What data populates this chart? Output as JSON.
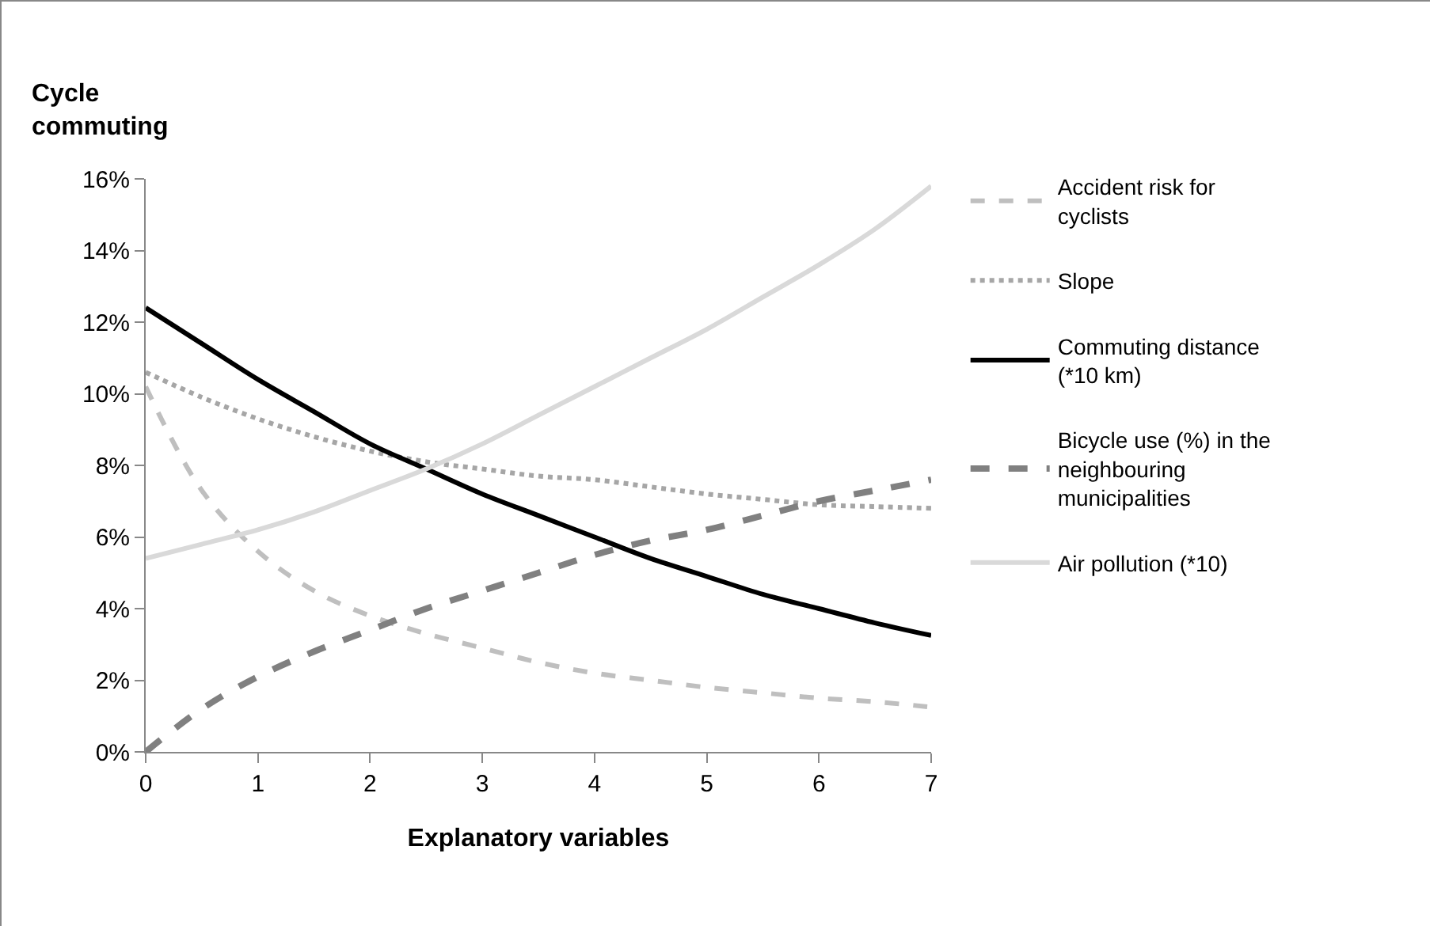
{
  "chart_data": {
    "type": "line",
    "ylabel": "Cycle commuting",
    "xlabel": "Explanatory variables",
    "x": [
      0,
      0.5,
      1,
      1.5,
      2,
      2.5,
      3,
      3.5,
      4,
      4.5,
      5,
      5.5,
      6,
      6.5,
      7
    ],
    "series": [
      {
        "name": "Accident risk for cyclists",
        "color": "#bfbfbf",
        "line_style": "dashed",
        "values": [
          10.2,
          7.3,
          5.6,
          4.5,
          3.8,
          3.3,
          2.9,
          2.5,
          2.2,
          2.0,
          1.8,
          1.65,
          1.5,
          1.4,
          1.25
        ]
      },
      {
        "name": "Slope",
        "color": "#a6a6a6",
        "line_style": "dotted",
        "values": [
          10.6,
          9.9,
          9.3,
          8.8,
          8.4,
          8.1,
          7.9,
          7.7,
          7.6,
          7.4,
          7.2,
          7.05,
          6.9,
          6.85,
          6.8
        ]
      },
      {
        "name": "Commuting distance (*10 km)",
        "color": "#000000",
        "line_style": "solid",
        "values": [
          12.4,
          11.4,
          10.4,
          9.5,
          8.6,
          7.9,
          7.2,
          6.6,
          6.0,
          5.4,
          4.9,
          4.4,
          4.0,
          3.6,
          3.25
        ]
      },
      {
        "name": "Bicycle use (%) in the neighbouring municipalities",
        "color": "#808080",
        "line_style": "dashed",
        "values": [
          0,
          1.2,
          2.1,
          2.8,
          3.4,
          4.0,
          4.5,
          5.0,
          5.5,
          5.9,
          6.2,
          6.6,
          7.0,
          7.3,
          7.6
        ]
      },
      {
        "name": "Air pollution (*10)",
        "color": "#d9d9d9",
        "line_style": "solid",
        "values": [
          5.4,
          5.8,
          6.2,
          6.7,
          7.3,
          7.9,
          8.6,
          9.4,
          10.2,
          11.0,
          11.8,
          12.7,
          13.6,
          14.6,
          15.8
        ]
      }
    ],
    "xlim": [
      0,
      7
    ],
    "xticks": [
      0,
      1,
      2,
      3,
      4,
      5,
      6,
      7
    ],
    "ylim": [
      0,
      16
    ],
    "yticks": [
      {
        "value": 0,
        "label": "0%"
      },
      {
        "value": 2,
        "label": "2%"
      },
      {
        "value": 4,
        "label": "4%"
      },
      {
        "value": 6,
        "label": "6%"
      },
      {
        "value": 8,
        "label": "8%"
      },
      {
        "value": 10,
        "label": "10%"
      },
      {
        "value": 12,
        "label": "12%"
      },
      {
        "value": 14,
        "label": "14%"
      },
      {
        "value": 16,
        "label": "16%"
      }
    ],
    "grid": false,
    "legend": "right",
    "marker": "none"
  }
}
